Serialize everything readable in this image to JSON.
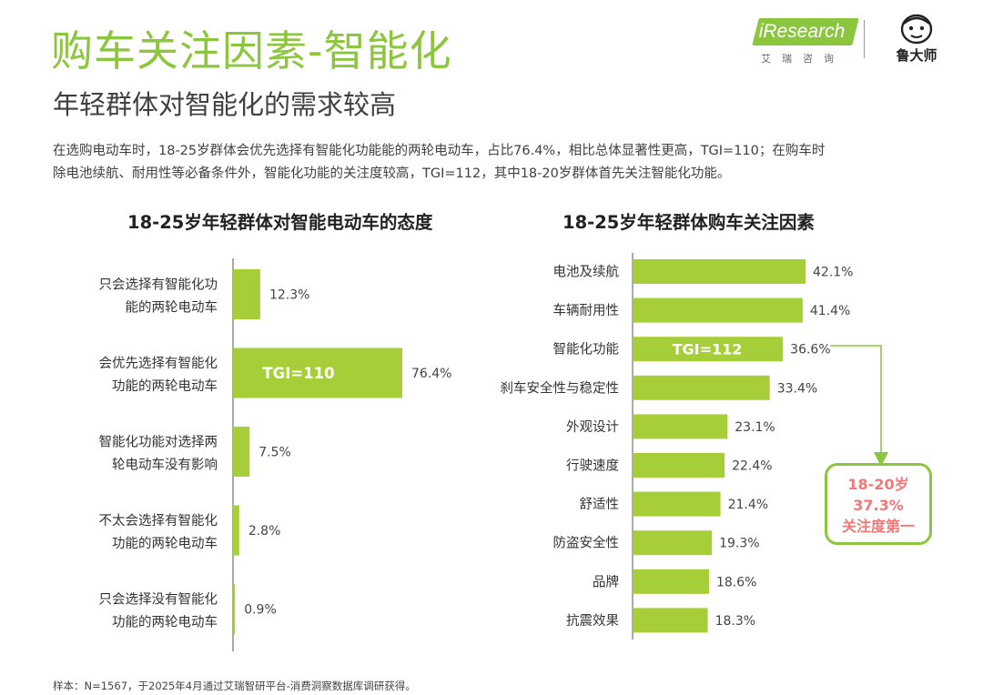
{
  "page": {
    "title": "购车关注因素-智能化",
    "subtitle": "年轻群体对智能化的需求较高",
    "description_lines": [
      "在选购电动车时，18-25岁群体会优先选择有智能化功能能的两轮电动车，占比76.4%，相比总体显著性更高，TGI=110；在购车时",
      "除电池续航、耐用性等必备条件外，智能化功能的关注度较高，TGI=112，其中18-20岁群体首先关注智能化功能。"
    ],
    "footnote": "样本：N=1567，于2025年4月通过艾瑞智研平台-消费洞察数据库调研获得。"
  },
  "logos": {
    "iresearch_text": "iResearch",
    "iresearch_sub": "艾瑞咨询",
    "luds_text": "鲁大师"
  },
  "colors": {
    "accent": "#8cc63e",
    "bar": "#a6ce39",
    "callout_text": "#f07878"
  },
  "chart_data": [
    {
      "type": "bar",
      "orientation": "horizontal",
      "title": "18-25岁年轻群体对智能电动车的态度",
      "categories": [
        [
          "只会选择有智能化功",
          "能的两轮电动车"
        ],
        [
          "会优先选择有智能化",
          "功能的两轮电动车"
        ],
        [
          "智能化功能对选择两",
          "轮电动车没有影响"
        ],
        [
          "不太会选择有智能化",
          "功能的两轮电动车"
        ],
        [
          "只会选择没有智能化",
          "功能的两轮电动车"
        ]
      ],
      "values": [
        12.3,
        76.4,
        7.5,
        2.8,
        0.9
      ],
      "value_labels": [
        "12.3%",
        "76.4%",
        "7.5%",
        "2.8%",
        "0.9%"
      ],
      "annotations": [
        {
          "category_index": 1,
          "text": "TGI=110"
        }
      ]
    },
    {
      "type": "bar",
      "orientation": "horizontal",
      "title": "18-25岁年轻群体购车关注因素",
      "categories": [
        "电池及续航",
        "车辆耐用性",
        "智能化功能",
        "刹车安全性与稳定性",
        "外观设计",
        "行驶速度",
        "舒适性",
        "防盗安全性",
        "品牌",
        "抗震效果"
      ],
      "values": [
        42.1,
        41.4,
        36.6,
        33.4,
        23.1,
        22.4,
        21.4,
        19.3,
        18.6,
        18.3
      ],
      "value_labels": [
        "42.1%",
        "41.4%",
        "36.6%",
        "33.4%",
        "23.1%",
        "22.4%",
        "21.4%",
        "19.3%",
        "18.6%",
        "18.3%"
      ],
      "annotations": [
        {
          "category_index": 2,
          "text": "TGI=112"
        }
      ],
      "callout": {
        "category_index": 2,
        "lines": [
          "18-20岁",
          "37.3%",
          "关注度第一"
        ]
      }
    }
  ]
}
